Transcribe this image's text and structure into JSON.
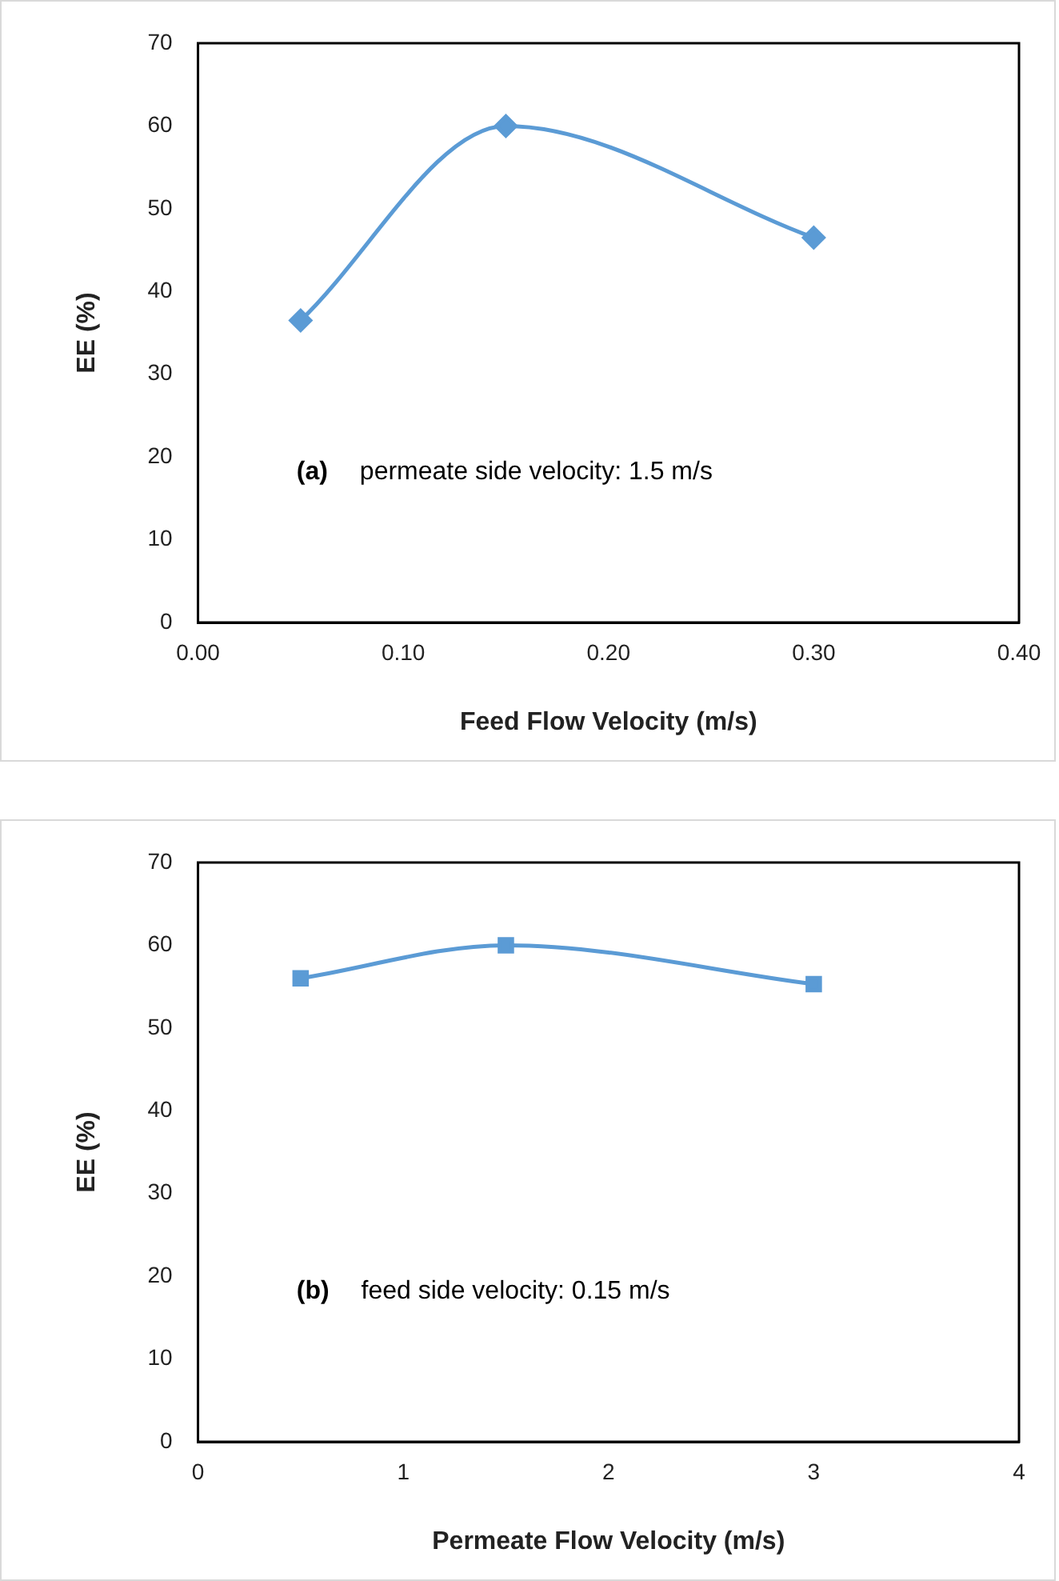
{
  "chart_data": [
    {
      "type": "line",
      "xlabel": "Feed Flow Velocity (m/s)",
      "ylabel": "EE (%)",
      "x": [
        0.05,
        0.15,
        0.3
      ],
      "series": [
        {
          "color": "#5b9bd5",
          "values": [
            36.5,
            60,
            46.5
          ]
        }
      ],
      "xlim": [
        0,
        0.4
      ],
      "xticks": [
        {
          "value": 0,
          "label": "0.00"
        },
        {
          "value": 0.1,
          "label": "0.10"
        },
        {
          "value": 0.2,
          "label": "0.20"
        },
        {
          "value": 0.3,
          "label": "0.30"
        },
        {
          "value": 0.4,
          "label": "0.40"
        }
      ],
      "ylim": [
        0,
        70
      ],
      "yticks": [
        0,
        10,
        20,
        30,
        40,
        50,
        60,
        70
      ],
      "grid": false,
      "legend": false,
      "marker": "diamond",
      "line_style": "solid",
      "annotations": [
        "(a)",
        "permeate side velocity: 1.5 m/s"
      ]
    },
    {
      "type": "line",
      "xlabel": "Permeate Flow Velocity (m/s)",
      "ylabel": "EE (%)",
      "x": [
        0.5,
        1.5,
        3
      ],
      "series": [
        {
          "color": "#5b9bd5",
          "values": [
            56,
            60,
            55.3
          ]
        }
      ],
      "xlim": [
        0,
        4
      ],
      "xticks": [
        0,
        1,
        2,
        3,
        4
      ],
      "ylim": [
        0,
        70
      ],
      "yticks": [
        0,
        10,
        20,
        30,
        40,
        50,
        60,
        70
      ],
      "grid": false,
      "legend": false,
      "marker": "square",
      "line_style": "solid",
      "annotations": [
        "(b)",
        "feed side velocity: 0.15 m/s"
      ]
    }
  ]
}
